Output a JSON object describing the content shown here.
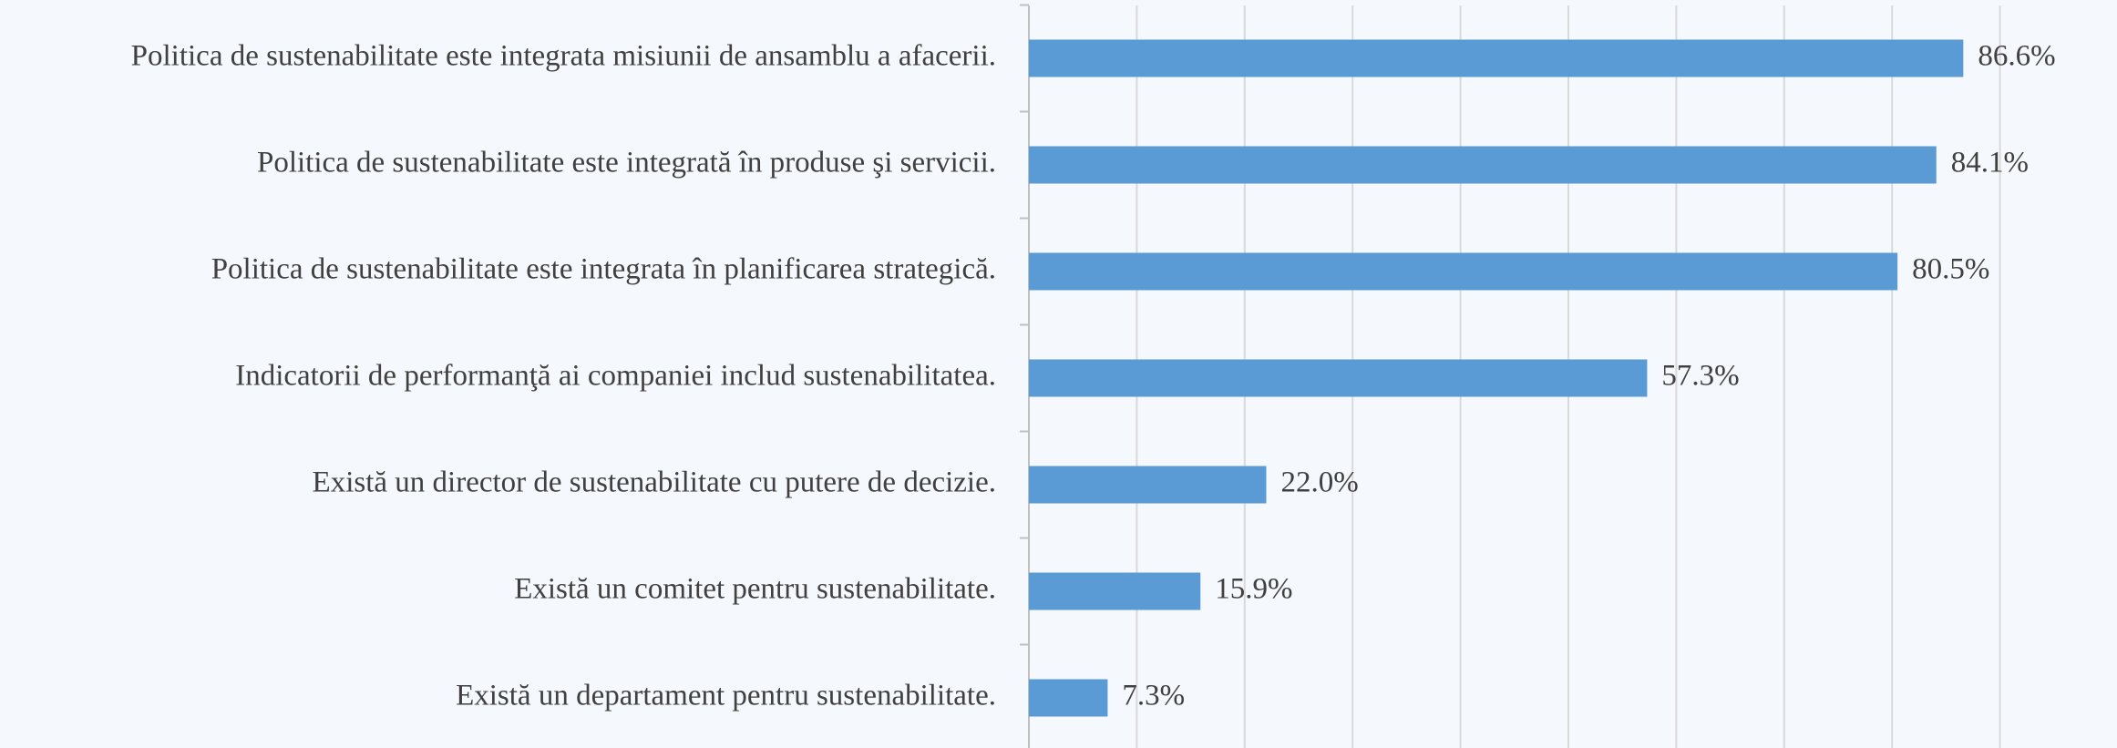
{
  "chart_data": {
    "type": "barh",
    "categories": [
      "Politica de sustenabilitate este integrata misiunii de ansamblu a afacerii.",
      "Politica de sustenabilitate este integrată în produse şi servicii.",
      "Politica de sustenabilitate este integrata în planificarea strategică.",
      "Indicatorii de performanţă ai companiei includ sustenabilitatea.",
      "Există un director de sustenabilitate cu putere de decizie.",
      "Există un comitet pentru sustenabilitate.",
      "Există un departament pentru sustenabilitate."
    ],
    "values": [
      86.6,
      84.1,
      80.5,
      57.3,
      22.0,
      15.9,
      7.3
    ],
    "value_labels": [
      "86.6%",
      "84.1%",
      "80.5%",
      "57.3%",
      "22.0%",
      "15.9%",
      "7.3%"
    ],
    "color": "#5b9bd5",
    "xlim": [
      0,
      100
    ],
    "xticks": [
      0,
      10,
      20,
      30,
      40,
      50,
      60,
      70,
      80,
      90
    ],
    "grid": true
  }
}
